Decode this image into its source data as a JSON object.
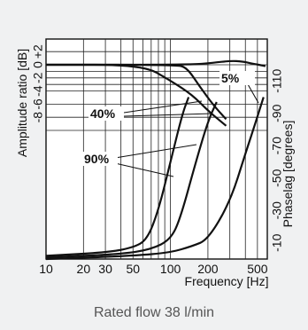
{
  "chart_data": {
    "type": "line",
    "xlabel": "Frequency [Hz]",
    "ylabel_left": "Amplitude ratio [dB]",
    "ylabel_right": "Phaselag [degrees]",
    "x_scale": "log",
    "xlim": [
      10,
      600
    ],
    "x_ticks": [
      10,
      20,
      30,
      50,
      100,
      200,
      500
    ],
    "x_tick_labels": [
      "10",
      "20",
      "30",
      "50",
      "100",
      "200",
      "500"
    ],
    "ylim_left": [
      -10,
      2
    ],
    "y_ticks_left": [
      2,
      0,
      -2,
      -4,
      -6,
      -8
    ],
    "y_tick_labels_left": [
      "+2",
      "0",
      "-2",
      "-4",
      "-6",
      "-8"
    ],
    "ylim_right": [
      0,
      120
    ],
    "y_ticks_right": [
      10,
      30,
      50,
      70,
      90,
      110
    ],
    "y_tick_labels_right": [
      "-10",
      "-30",
      "-50",
      "-70",
      "-90",
      "-110"
    ],
    "grid": true,
    "annotations": [
      {
        "text": "40%"
      },
      {
        "text": "90%"
      },
      {
        "text": "5%"
      }
    ],
    "series": [
      {
        "axis": "left",
        "points": [
          [
            10,
            0
          ],
          [
            60,
            0
          ],
          [
            100,
            -2.4
          ],
          [
            150,
            -4.6
          ],
          [
            200,
            -7.0
          ],
          [
            280,
            -9.3
          ]
        ]
      },
      {
        "axis": "left",
        "points": [
          [
            10,
            0
          ],
          [
            110,
            0
          ],
          [
            135,
            -0.4
          ],
          [
            170,
            -3.2
          ],
          [
            220,
            -6.1
          ],
          [
            280,
            -8.3
          ]
        ]
      },
      {
        "axis": "left",
        "points": [
          [
            10,
            0
          ],
          [
            150,
            0
          ],
          [
            220,
            0.3
          ],
          [
            300,
            0.6
          ],
          [
            380,
            0.5
          ],
          [
            450,
            0.2
          ],
          [
            580,
            -0.2
          ]
        ]
      },
      {
        "axis": "right",
        "points": [
          [
            10,
            2
          ],
          [
            30,
            4
          ],
          [
            50,
            7
          ],
          [
            65,
            12
          ],
          [
            80,
            30
          ],
          [
            100,
            60
          ],
          [
            125,
            90
          ],
          [
            140,
            100
          ]
        ]
      },
      {
        "axis": "right",
        "points": [
          [
            10,
            1
          ],
          [
            40,
            3
          ],
          [
            70,
            6
          ],
          [
            100,
            12
          ],
          [
            120,
            25
          ],
          [
            160,
            60
          ],
          [
            200,
            85
          ],
          [
            235,
            97
          ]
        ]
      },
      {
        "axis": "right",
        "points": [
          [
            10,
            0
          ],
          [
            50,
            2
          ],
          [
            100,
            4
          ],
          [
            150,
            8
          ],
          [
            200,
            12
          ],
          [
            300,
            35
          ],
          [
            400,
            65
          ],
          [
            500,
            88
          ],
          [
            560,
            100
          ]
        ]
      }
    ]
  },
  "caption": "Rated flow 38 l/min"
}
